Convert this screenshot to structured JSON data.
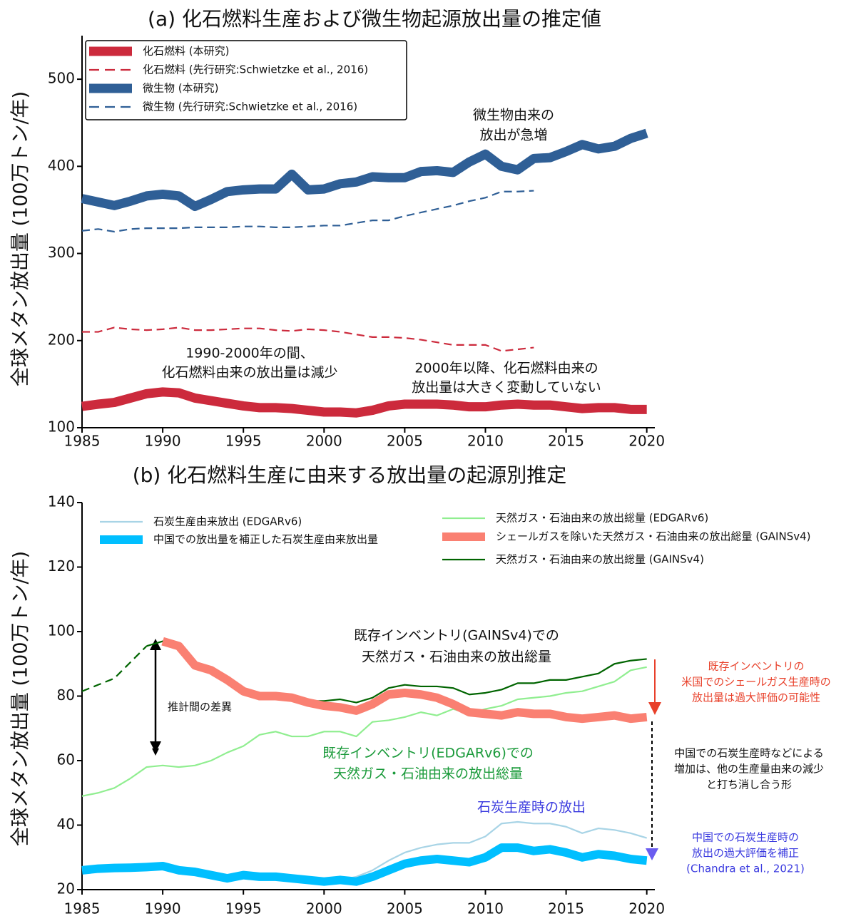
{
  "chart_data": [
    {
      "type": "line",
      "title": "(a) 化石燃料生産および微生物起源放出量の推定値",
      "y_label": "全球メタン放出量 (100万トン/年)",
      "x": [
        1985,
        1986,
        1987,
        1988,
        1989,
        1990,
        1991,
        1992,
        1993,
        1994,
        1995,
        1996,
        1997,
        1998,
        1999,
        2000,
        2001,
        2002,
        2003,
        2004,
        2005,
        2006,
        2007,
        2008,
        2009,
        2010,
        2011,
        2012,
        2013,
        2014,
        2015,
        2016,
        2017,
        2018,
        2019,
        2020
      ],
      "xlim": [
        1985,
        2020.5
      ],
      "xticks": [
        1985,
        1990,
        1995,
        2000,
        2005,
        2010,
        2015,
        2020
      ],
      "ylim": [
        100,
        550
      ],
      "yticks": [
        100,
        200,
        300,
        400,
        500
      ],
      "legend": "upper left",
      "series": [
        {
          "name": "化石燃料 (本研究)",
          "color": "#cc2a3c",
          "linewidth": 13,
          "dashed": false,
          "values": [
            124.5,
            127,
            129,
            134,
            139,
            141,
            140,
            134,
            131,
            128,
            125,
            123,
            123,
            122,
            120,
            118,
            118,
            117,
            120,
            125,
            127,
            127,
            127,
            126,
            124,
            124,
            126,
            127,
            126,
            126,
            124,
            122,
            123,
            123,
            121,
            121
          ]
        },
        {
          "name": "化石燃料 (先行研究:Schwietzke et al., 2016)",
          "color": "#cc2a3c",
          "linewidth": 2.2,
          "dashed": true,
          "values": [
            210,
            210,
            215,
            213,
            212,
            213,
            215,
            212,
            212,
            213,
            214,
            214,
            212,
            211,
            213,
            212,
            210,
            207,
            204,
            204,
            203,
            201,
            198,
            195,
            195,
            195,
            188,
            190,
            192,
            null,
            null,
            null,
            null,
            null,
            null,
            null
          ]
        },
        {
          "name": "微生物 (本研究)",
          "color": "#2f5f96",
          "linewidth": 13,
          "dashed": false,
          "values": [
            363,
            359,
            355,
            360,
            366,
            368,
            366,
            354,
            362,
            371,
            373,
            374,
            374,
            391,
            373,
            374,
            380,
            382,
            388,
            387,
            387,
            394,
            395,
            393,
            405,
            414,
            400,
            396,
            409,
            410,
            417,
            425,
            420,
            423,
            432,
            438
          ]
        },
        {
          "name": "微生物 (先行研究:Schwietzke et al., 2016)",
          "color": "#2f5f96",
          "linewidth": 2.2,
          "dashed": true,
          "values": [
            326,
            328,
            325,
            328,
            329,
            329,
            329,
            330,
            330,
            330,
            331,
            331,
            330,
            330,
            331,
            332,
            332,
            335,
            338,
            338,
            343,
            347,
            351,
            355,
            360,
            364,
            371,
            371,
            372,
            null,
            null,
            null,
            null,
            null,
            null,
            null
          ]
        }
      ],
      "annotations": [
        {
          "lines": [
            "微生物由来の",
            "放出が急増"
          ],
          "color": "#111111"
        },
        {
          "lines": [
            "1990-2000年の間、",
            "化石燃料由来の放出量は減少"
          ],
          "color": "#111111"
        },
        {
          "lines": [
            "2000年以降、化石燃料由来の",
            "放出量は大きく変動していない"
          ],
          "color": "#111111"
        }
      ]
    },
    {
      "type": "line",
      "title": "(b) 化石燃料生産に由来する放出量の起源別推定",
      "y_label": "全球メタン放出量 (100万トン/年)",
      "x": [
        1985,
        1986,
        1987,
        1988,
        1989,
        1990,
        1991,
        1992,
        1993,
        1994,
        1995,
        1996,
        1997,
        1998,
        1999,
        2000,
        2001,
        2002,
        2003,
        2004,
        2005,
        2006,
        2007,
        2008,
        2009,
        2010,
        2011,
        2012,
        2013,
        2014,
        2015,
        2016,
        2017,
        2018,
        2019,
        2020
      ],
      "xlim": [
        1985,
        2020.5
      ],
      "xticks": [
        1985,
        1990,
        1995,
        2000,
        2005,
        2010,
        2015,
        2020
      ],
      "ylim": [
        20,
        140
      ],
      "yticks": [
        20,
        40,
        60,
        80,
        100,
        120,
        140
      ],
      "legend": "upper",
      "series": [
        {
          "name": "石炭生産由来放出 (EDGARv6)",
          "color": "#a8d4e6",
          "linewidth": 2.2,
          "dashed": false,
          "values": [
            26,
            26.5,
            26.7,
            26.8,
            27,
            27.3,
            26,
            25.5,
            24.5,
            23.5,
            24.5,
            24,
            24,
            23.5,
            23,
            22.5,
            23,
            24,
            26,
            29,
            31.5,
            33,
            34,
            34.5,
            34.5,
            36.5,
            40.5,
            41,
            40.5,
            40.5,
            39.5,
            37.5,
            39,
            38.5,
            37.5,
            36
          ]
        },
        {
          "name": "中国での放出量を補正した石炭生産由来放出量",
          "color": "#00bfff",
          "linewidth": 12,
          "dashed": false,
          "values": [
            26,
            26.5,
            26.7,
            26.8,
            27,
            27.3,
            26,
            25.5,
            24.5,
            23.5,
            24.5,
            24,
            24,
            23.5,
            23,
            22.5,
            23,
            22.5,
            24,
            26,
            28,
            29,
            29.5,
            29,
            28.5,
            30,
            33,
            33,
            32,
            32.5,
            31.5,
            30,
            31,
            30.5,
            29.5,
            29
          ]
        },
        {
          "name": "天然ガス・石油由来の放出総量 (EDGARv6)",
          "color": "#90ee90",
          "linewidth": 2.2,
          "dashed": false,
          "values": [
            49,
            50,
            51.5,
            54.5,
            58,
            58.5,
            58,
            58.5,
            60,
            62.5,
            64.5,
            68,
            69,
            67.5,
            67.5,
            69,
            69,
            67.5,
            72,
            72.5,
            73.5,
            75,
            74,
            76,
            74.5,
            76,
            77,
            79,
            79.5,
            80,
            81,
            81.5,
            83,
            84.5,
            88,
            89
          ]
        },
        {
          "name": "シェールガスを除いた天然ガス・石油由来の放出総量 (GAINSv4)",
          "color": "#fa8072",
          "linewidth": 12,
          "dashed": false,
          "values": [
            null,
            null,
            null,
            null,
            null,
            97,
            95.5,
            89.5,
            88,
            85,
            81.5,
            80,
            80,
            79.5,
            78,
            77,
            76.5,
            75.5,
            77.5,
            80.5,
            81,
            80.5,
            79.5,
            77.5,
            75,
            74.5,
            74,
            75,
            74.5,
            74.5,
            73.5,
            73,
            73.5,
            74,
            73,
            73.5
          ]
        },
        {
          "name": "天然ガス・石油由来の放出総量 (GAINSv4)",
          "color": "#006400",
          "linewidth": 2.2,
          "dashed": false,
          "dashed_until": 1990,
          "values": [
            81.5,
            83.5,
            85.5,
            90.5,
            95.5,
            97,
            95.5,
            89.5,
            88,
            85,
            81.5,
            80,
            80,
            79.5,
            78.5,
            78.5,
            79,
            78,
            79.5,
            82.5,
            83.5,
            83,
            83,
            82.5,
            80.5,
            81,
            82,
            84,
            84,
            85,
            85,
            86,
            87,
            90,
            91,
            91.5
          ]
        }
      ],
      "annotations": [
        {
          "lines": [
            "既存インベントリ(GAINSv4)での",
            "天然ガス・石油由来の放出総量"
          ],
          "color": "#111111"
        },
        {
          "lines": [
            "推計間の差異"
          ],
          "color": "#111111"
        },
        {
          "lines": [
            "既存インベントリ(EDGARv6)での",
            "天然ガス・石油由来の放出総量"
          ],
          "color": "#1a9a3a"
        },
        {
          "lines": [
            "石炭生産時の放出"
          ],
          "color": "#3a3adf"
        },
        {
          "lines": [
            "既存インベントリの",
            "米国でのシェールガス生産時の",
            "放出量は過大評価の可能性"
          ],
          "color": "#e8402a"
        },
        {
          "lines": [
            "中国での石炭生産時などによる",
            "増加は、他の生産量由来の減少",
            "と打ち消し合う形"
          ],
          "color": "#111111"
        },
        {
          "lines": [
            "中国での石炭生産時の",
            "放出の過大評価を補正",
            "(Chandra et al., 2021)"
          ],
          "color": "#3a3adf"
        }
      ]
    }
  ]
}
